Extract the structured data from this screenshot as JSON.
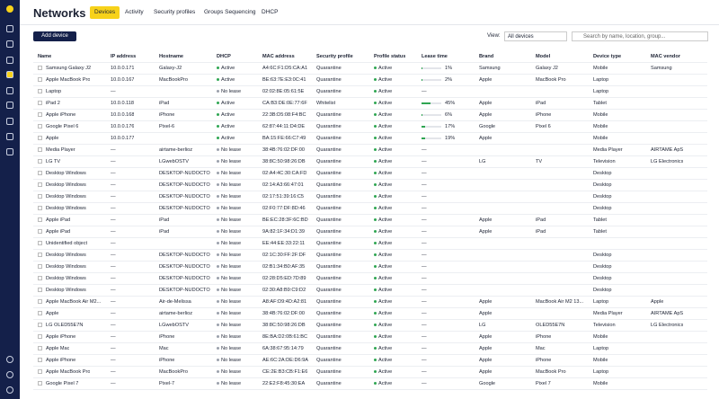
{
  "header": {
    "title": "Networks",
    "tabs": [
      "Devices",
      "Activity",
      "Security profiles",
      "Groups Sequencing",
      "DHCP"
    ]
  },
  "toolbar": {
    "add_button": "Add device",
    "view_label": "View:",
    "view_value": "All devices",
    "search_placeholder": "Search by name, location, group..."
  },
  "table": {
    "columns": [
      "Name",
      "IP address",
      "Hostname",
      "DHCP",
      "MAC address",
      "Security profile",
      "Profile status",
      "Lease time",
      "Brand",
      "Model",
      "Device type",
      "MAC vendor"
    ],
    "rows": [
      [
        "Samsung Galaxy J2",
        "10.0.0.171",
        "Galaxy-J2",
        "Active",
        "A4:6C:F1:D5:CA:A1",
        "Quarantine",
        "Active",
        {
          "value": 1,
          "label": "1%"
        },
        "Samsung",
        "Galaxy J2",
        "Mobile",
        "Samsung"
      ],
      [
        "Apple MacBook Pro",
        "10.0.0.167",
        "MacBookPro",
        "Active",
        "BE:63:7E:E3:0C:41",
        "Quarantine",
        "Active",
        {
          "value": 2,
          "label": "2%"
        },
        "Apple",
        "MacBook Pro",
        "Laptop",
        null
      ],
      [
        "Laptop",
        "—",
        null,
        "No lease",
        "02:02:8E:05:61:5E",
        "Quarantine",
        "Active",
        "—",
        null,
        null,
        "Laptop",
        null
      ],
      [
        "iPad 2",
        "10.0.0.118",
        "iPad",
        "Active",
        "CA:B3:DE:0E:77:6F",
        "Whitelist",
        "Active",
        {
          "value": 45,
          "label": "45%"
        },
        "Apple",
        "iPad",
        "Tablet",
        null
      ],
      [
        "Apple iPhone",
        "10.0.0.168",
        "iPhone",
        "Active",
        "22:3B:D5:08:F4:BC",
        "Quarantine",
        "Active",
        {
          "value": 6,
          "label": "6%"
        },
        "Apple",
        "iPhone",
        "Mobile",
        null
      ],
      [
        "Google Pixel 6",
        "10.0.0.176",
        "Pixel-6",
        "Active",
        "62:87:44:11:D4:DE",
        "Quarantine",
        "Active",
        {
          "value": 17,
          "label": "17%"
        },
        "Google",
        "Pixel 6",
        "Mobile",
        null
      ],
      [
        "Apple",
        "10.0.0.177",
        null,
        "Active",
        "BA:15:FE:66:C7:49",
        "Quarantine",
        "Active",
        {
          "value": 19,
          "label": "19%"
        },
        "Apple",
        null,
        "Mobile",
        null
      ],
      [
        "Media Player",
        "—",
        "airtame-berlioz",
        "No lease",
        "38:4B:76:02:DF:00",
        "Quarantine",
        "Active",
        "—",
        null,
        null,
        "Media Player",
        "AIRTAME ApS"
      ],
      [
        "LG TV",
        "—",
        "LGwebOSTV",
        "No lease",
        "38:8C:50:98:26:DB",
        "Quarantine",
        "Active",
        "—",
        "LG",
        "TV",
        "Television",
        "LG Electronics"
      ],
      [
        "Desktop Windows",
        "—",
        "DESKTOP-NUDOCTO",
        "No lease",
        "02:A4:4C:30:CA:FD",
        "Quarantine",
        "Active",
        "—",
        null,
        null,
        "Desktop",
        null
      ],
      [
        "Desktop Windows",
        "—",
        "DESKTOP-NUDOCTO",
        "No lease",
        "02:14:A3:66:47:01",
        "Quarantine",
        "Active",
        "—",
        null,
        null,
        "Desktop",
        null
      ],
      [
        "Desktop Windows",
        "—",
        "DESKTOP-NUDOCTO",
        "No lease",
        "02:17:51:39:16:C5",
        "Quarantine",
        "Active",
        "—",
        null,
        null,
        "Desktop",
        null
      ],
      [
        "Desktop Windows",
        "—",
        "DESKTOP-NUDOCTO",
        "No lease",
        "02:F0:77:DF:8D:46",
        "Quarantine",
        "Active",
        "—",
        null,
        null,
        "Desktop",
        null
      ],
      [
        "Apple iPad",
        "—",
        "iPad",
        "No lease",
        "BE:EC:28:3F:6C:BD",
        "Quarantine",
        "Active",
        "—",
        "Apple",
        "iPad",
        "Tablet",
        null
      ],
      [
        "Apple iPad",
        "—",
        "iPad",
        "No lease",
        "9A:82:1F:34:D1:39",
        "Quarantine",
        "Active",
        "—",
        "Apple",
        "iPad",
        "Tablet",
        null
      ],
      [
        "Unidentified object",
        "—",
        null,
        "No lease",
        "EE:44:EE:33:22:11",
        "Quarantine",
        "Active",
        "—",
        null,
        null,
        null,
        null
      ],
      [
        "Desktop Windows",
        "—",
        "DESKTOP-NUDOCTO",
        "No lease",
        "02:1C:30:FF:2F:DF",
        "Quarantine",
        "Active",
        "—",
        null,
        null,
        "Desktop",
        null
      ],
      [
        "Desktop Windows",
        "—",
        "DESKTOP-NUDOCTO",
        "No lease",
        "02:B1:34:B0:AF:35",
        "Quarantine",
        "Active",
        "—",
        null,
        null,
        "Desktop",
        null
      ],
      [
        "Desktop Windows",
        "—",
        "DESKTOP-NUDOCTO",
        "No lease",
        "02:28:D5:ED:7D:89",
        "Quarantine",
        "Active",
        "—",
        null,
        null,
        "Desktop",
        null
      ],
      [
        "Desktop Windows",
        "—",
        "DESKTOP-NUDOCTO",
        "No lease",
        "02:30:A8:B9:C9:D2",
        "Quarantine",
        "Active",
        "—",
        null,
        null,
        "Desktop",
        null
      ],
      [
        "Apple MacBook Air M2...",
        "—",
        "Air-de-Melissa",
        "No lease",
        "A8:AF:D9:4D:A2:81",
        "Quarantine",
        "Active",
        "—",
        "Apple",
        "MacBook Air M2 13...",
        "Laptop",
        "Apple"
      ],
      [
        "Apple",
        "—",
        "airtame-berlioz",
        "No lease",
        "38:4B:76:02:DF:00",
        "Quarantine",
        "Active",
        "—",
        "Apple",
        null,
        "Media Player",
        "AIRTAME ApS"
      ],
      [
        "LG OLED55E7N",
        "—",
        "LGwebOSTV",
        "No lease",
        "38:8C:50:98:26:DB",
        "Quarantine",
        "Active",
        "—",
        "LG",
        "OLED55E7N",
        "Television",
        "LG Electronics"
      ],
      [
        "Apple iPhone",
        "—",
        "iPhone",
        "No lease",
        "8E:BA:D2:0B:61:BC",
        "Quarantine",
        "Active",
        "—",
        "Apple",
        "iPhone",
        "Mobile",
        null
      ],
      [
        "Apple Mac",
        "—",
        "Mac",
        "No lease",
        "6A:38:67:95:14:79",
        "Quarantine",
        "Active",
        "—",
        "Apple",
        "Mac",
        "Laptop",
        null
      ],
      [
        "Apple iPhone",
        "—",
        "iPhone",
        "No lease",
        "AE:6C:2A:DE:D6:9A",
        "Quarantine",
        "Active",
        "—",
        "Apple",
        "iPhone",
        "Mobile",
        null
      ],
      [
        "Apple MacBook Pro",
        "—",
        "MacBookPro",
        "No lease",
        "CE:2E:B3:CB:F1:E6",
        "Quarantine",
        "Active",
        "—",
        "Apple",
        "MacBook Pro",
        "Laptop",
        null
      ],
      [
        "Google Pixel 7",
        "—",
        "Pixel-7",
        "No lease",
        "22:E2:F8:45:30:EA",
        "Quarantine",
        "Active",
        "—",
        "Google",
        "Pixel 7",
        "Mobile",
        null
      ]
    ]
  }
}
